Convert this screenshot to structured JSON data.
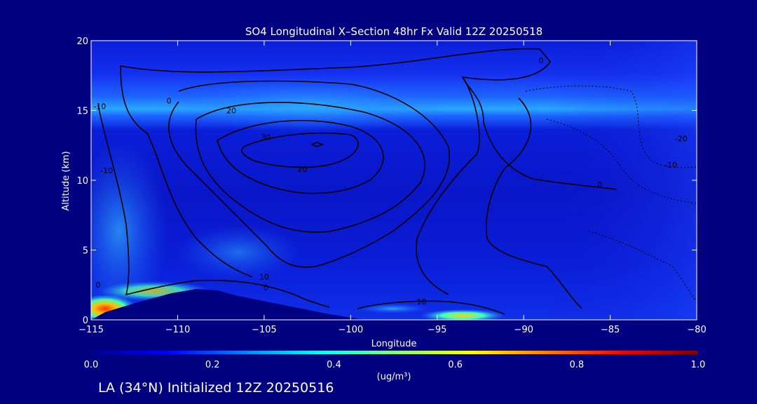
{
  "chart_data": {
    "type": "heatmap",
    "title": "SO4 Longitudinal X–Section 48hr  Fx Valid 12Z 20250518",
    "xlabel": "Longitude",
    "ylabel": "Altitude (km)",
    "xlim": [
      -115,
      -80
    ],
    "ylim": [
      0,
      20
    ],
    "x_ticks": [
      -115,
      -110,
      -105,
      -100,
      -95,
      -90,
      -85,
      -80
    ],
    "x_tick_labels": [
      "−115",
      "−110",
      "−105",
      "−100",
      "−95",
      "−90",
      "−85",
      "−80"
    ],
    "y_ticks": [
      0,
      5,
      10,
      15,
      20
    ],
    "y_tick_labels": [
      "0",
      "5",
      "10",
      "15",
      "20"
    ],
    "colorbar": {
      "min": 0.0,
      "max": 1.0,
      "ticks": [
        0.0,
        0.2,
        0.4,
        0.6,
        0.8,
        1.0
      ],
      "tick_labels": [
        "0.0",
        "0.2",
        "0.4",
        "0.6",
        "0.8",
        "1.0"
      ],
      "unit": "(ug/m³)",
      "colors": [
        "#00008f",
        "#0000ff",
        "#0080ff",
        "#00ffff",
        "#80ff80",
        "#ffff00",
        "#ff8000",
        "#ff0000",
        "#800000"
      ]
    },
    "contour_labels": [
      {
        "text": "0",
        "lon": -104.9,
        "alt": 2.1
      },
      {
        "text": "10",
        "lon": -105.0,
        "alt": 2.9
      },
      {
        "text": "20",
        "lon": -106.9,
        "alt": 14.8
      },
      {
        "text": "30",
        "lon": -104.9,
        "alt": 12.9
      },
      {
        "text": "20",
        "lon": -102.8,
        "alt": 10.6
      },
      {
        "text": "0",
        "lon": -110.5,
        "alt": 15.5
      },
      {
        "text": "0",
        "lon": -89.0,
        "alt": 18.4
      },
      {
        "text": "0",
        "lon": -85.6,
        "alt": 9.5
      },
      {
        "text": "-20",
        "lon": -80.9,
        "alt": 12.8
      },
      {
        "text": "-10",
        "lon": -81.5,
        "alt": 10.9
      },
      {
        "text": "-10",
        "lon": -114.5,
        "alt": 15.1
      },
      {
        "text": "-10",
        "lon": -114.1,
        "alt": 10.5
      },
      {
        "text": "0",
        "lon": -114.6,
        "alt": 2.3
      },
      {
        "text": "10",
        "lon": -95.9,
        "alt": 1.1
      }
    ]
  },
  "footer": {
    "text": "LA (34°N) Initialized 12Z 20250516"
  }
}
